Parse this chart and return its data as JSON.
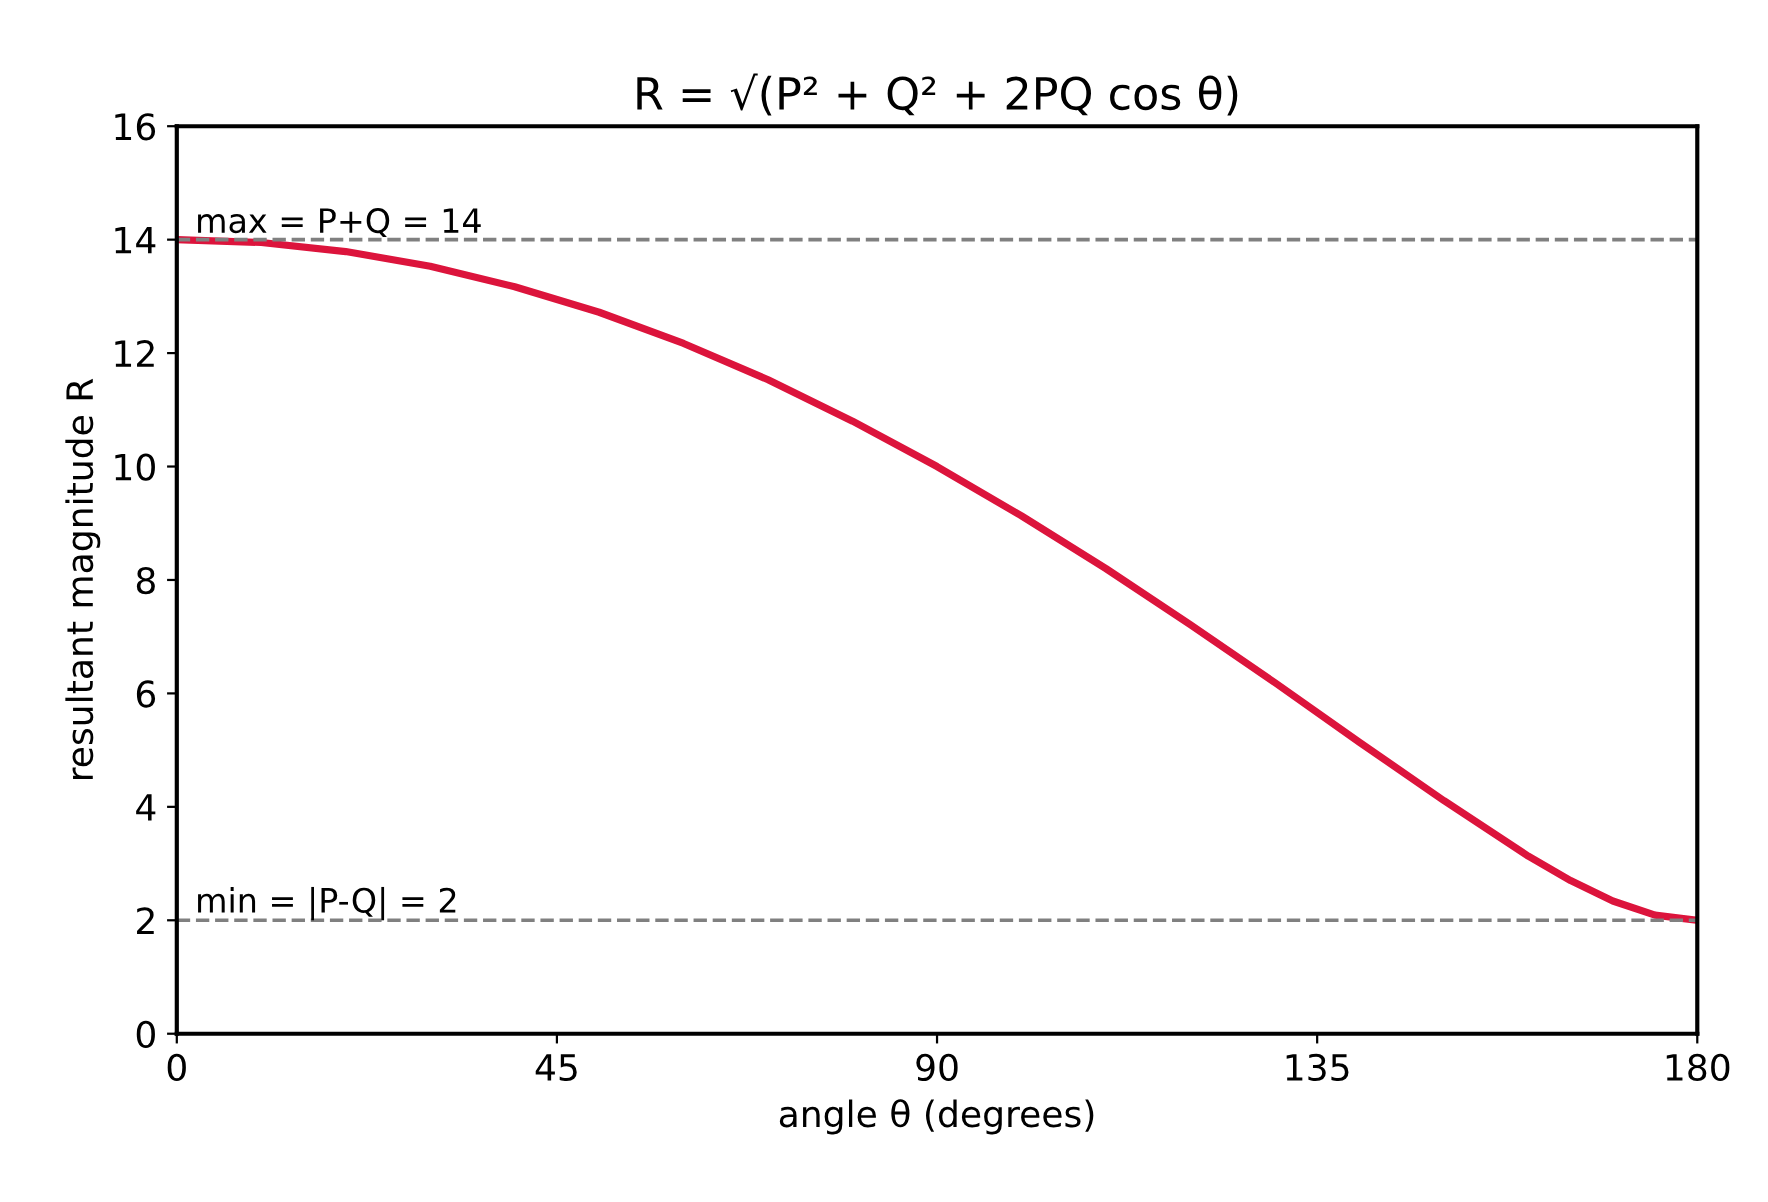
{
  "chart_data": {
    "type": "line",
    "title": "R = √(P² + Q² + 2PQ cos θ)",
    "xlabel": "angle θ (degrees)",
    "ylabel": "resultant magnitude R",
    "x": [
      0,
      10,
      20,
      30,
      40,
      50,
      60,
      70,
      80,
      90,
      100,
      110,
      120,
      130,
      140,
      150,
      160,
      165,
      170,
      175,
      180
    ],
    "series": [
      {
        "color": "#dc143c",
        "values": [
          14.0,
          13.95,
          13.79,
          13.53,
          13.17,
          12.72,
          12.17,
          11.53,
          10.8,
          10.0,
          9.13,
          8.2,
          7.21,
          6.19,
          5.14,
          4.11,
          3.13,
          2.7,
          2.34,
          2.09,
          2.0
        ]
      }
    ],
    "xlim": [
      0,
      180
    ],
    "xticks": [
      0,
      45,
      90,
      135,
      180
    ],
    "ylim": [
      0,
      16
    ],
    "yticks": [
      0,
      2,
      4,
      6,
      8,
      10,
      12,
      14,
      16
    ],
    "ref_lines": [
      {
        "axis": "y",
        "value": 14,
        "label": "max = P+Q = 14",
        "color": "#808080",
        "line_style": "dashed"
      },
      {
        "axis": "y",
        "value": 2,
        "label": "min = |P-Q| = 2",
        "color": "#808080",
        "line_style": "dashed"
      }
    ],
    "grid": false,
    "legend": false,
    "marker": "none",
    "line_style": "solid"
  }
}
